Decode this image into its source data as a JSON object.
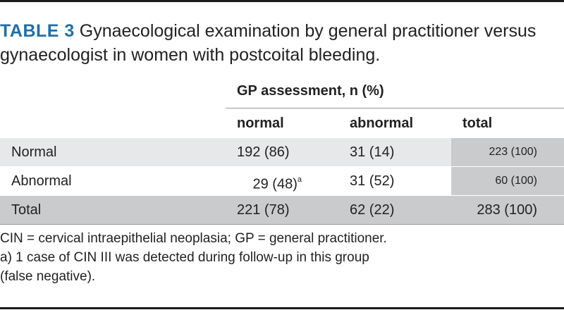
{
  "title": {
    "label": "TABLE 3",
    "text": " Gynaecological examination by general practitioner versus gynaecologist in women with postcoital bleeding."
  },
  "table": {
    "group_header": "GP assessment, n (%)",
    "columns": [
      "normal",
      "abnormal",
      "total"
    ],
    "rows": [
      {
        "label": "Normal",
        "normal": "192 (86)",
        "abnormal": "31 (14)",
        "total": "223 (100)"
      },
      {
        "label": "Abnormal",
        "normal": "29 (48)",
        "normal_note": "a",
        "abnormal": "31 (52)",
        "total": "60 (100)"
      },
      {
        "label": "Total",
        "normal": "221 (78)",
        "abnormal": "62 (22)",
        "total": "283 (100)"
      }
    ]
  },
  "footnotes": {
    "abbreviations": "CIN = cervical intraepithelial neoplasia; GP = general practitioner.",
    "note_a_line1": "a) 1 case of CIN III was detected during follow-up in this group",
    "note_a_line2": "(false negative)."
  },
  "colors": {
    "title_accent": "#1f6fa8",
    "row_light": "#e7e8e9",
    "row_dark": "#c9cbcd"
  }
}
